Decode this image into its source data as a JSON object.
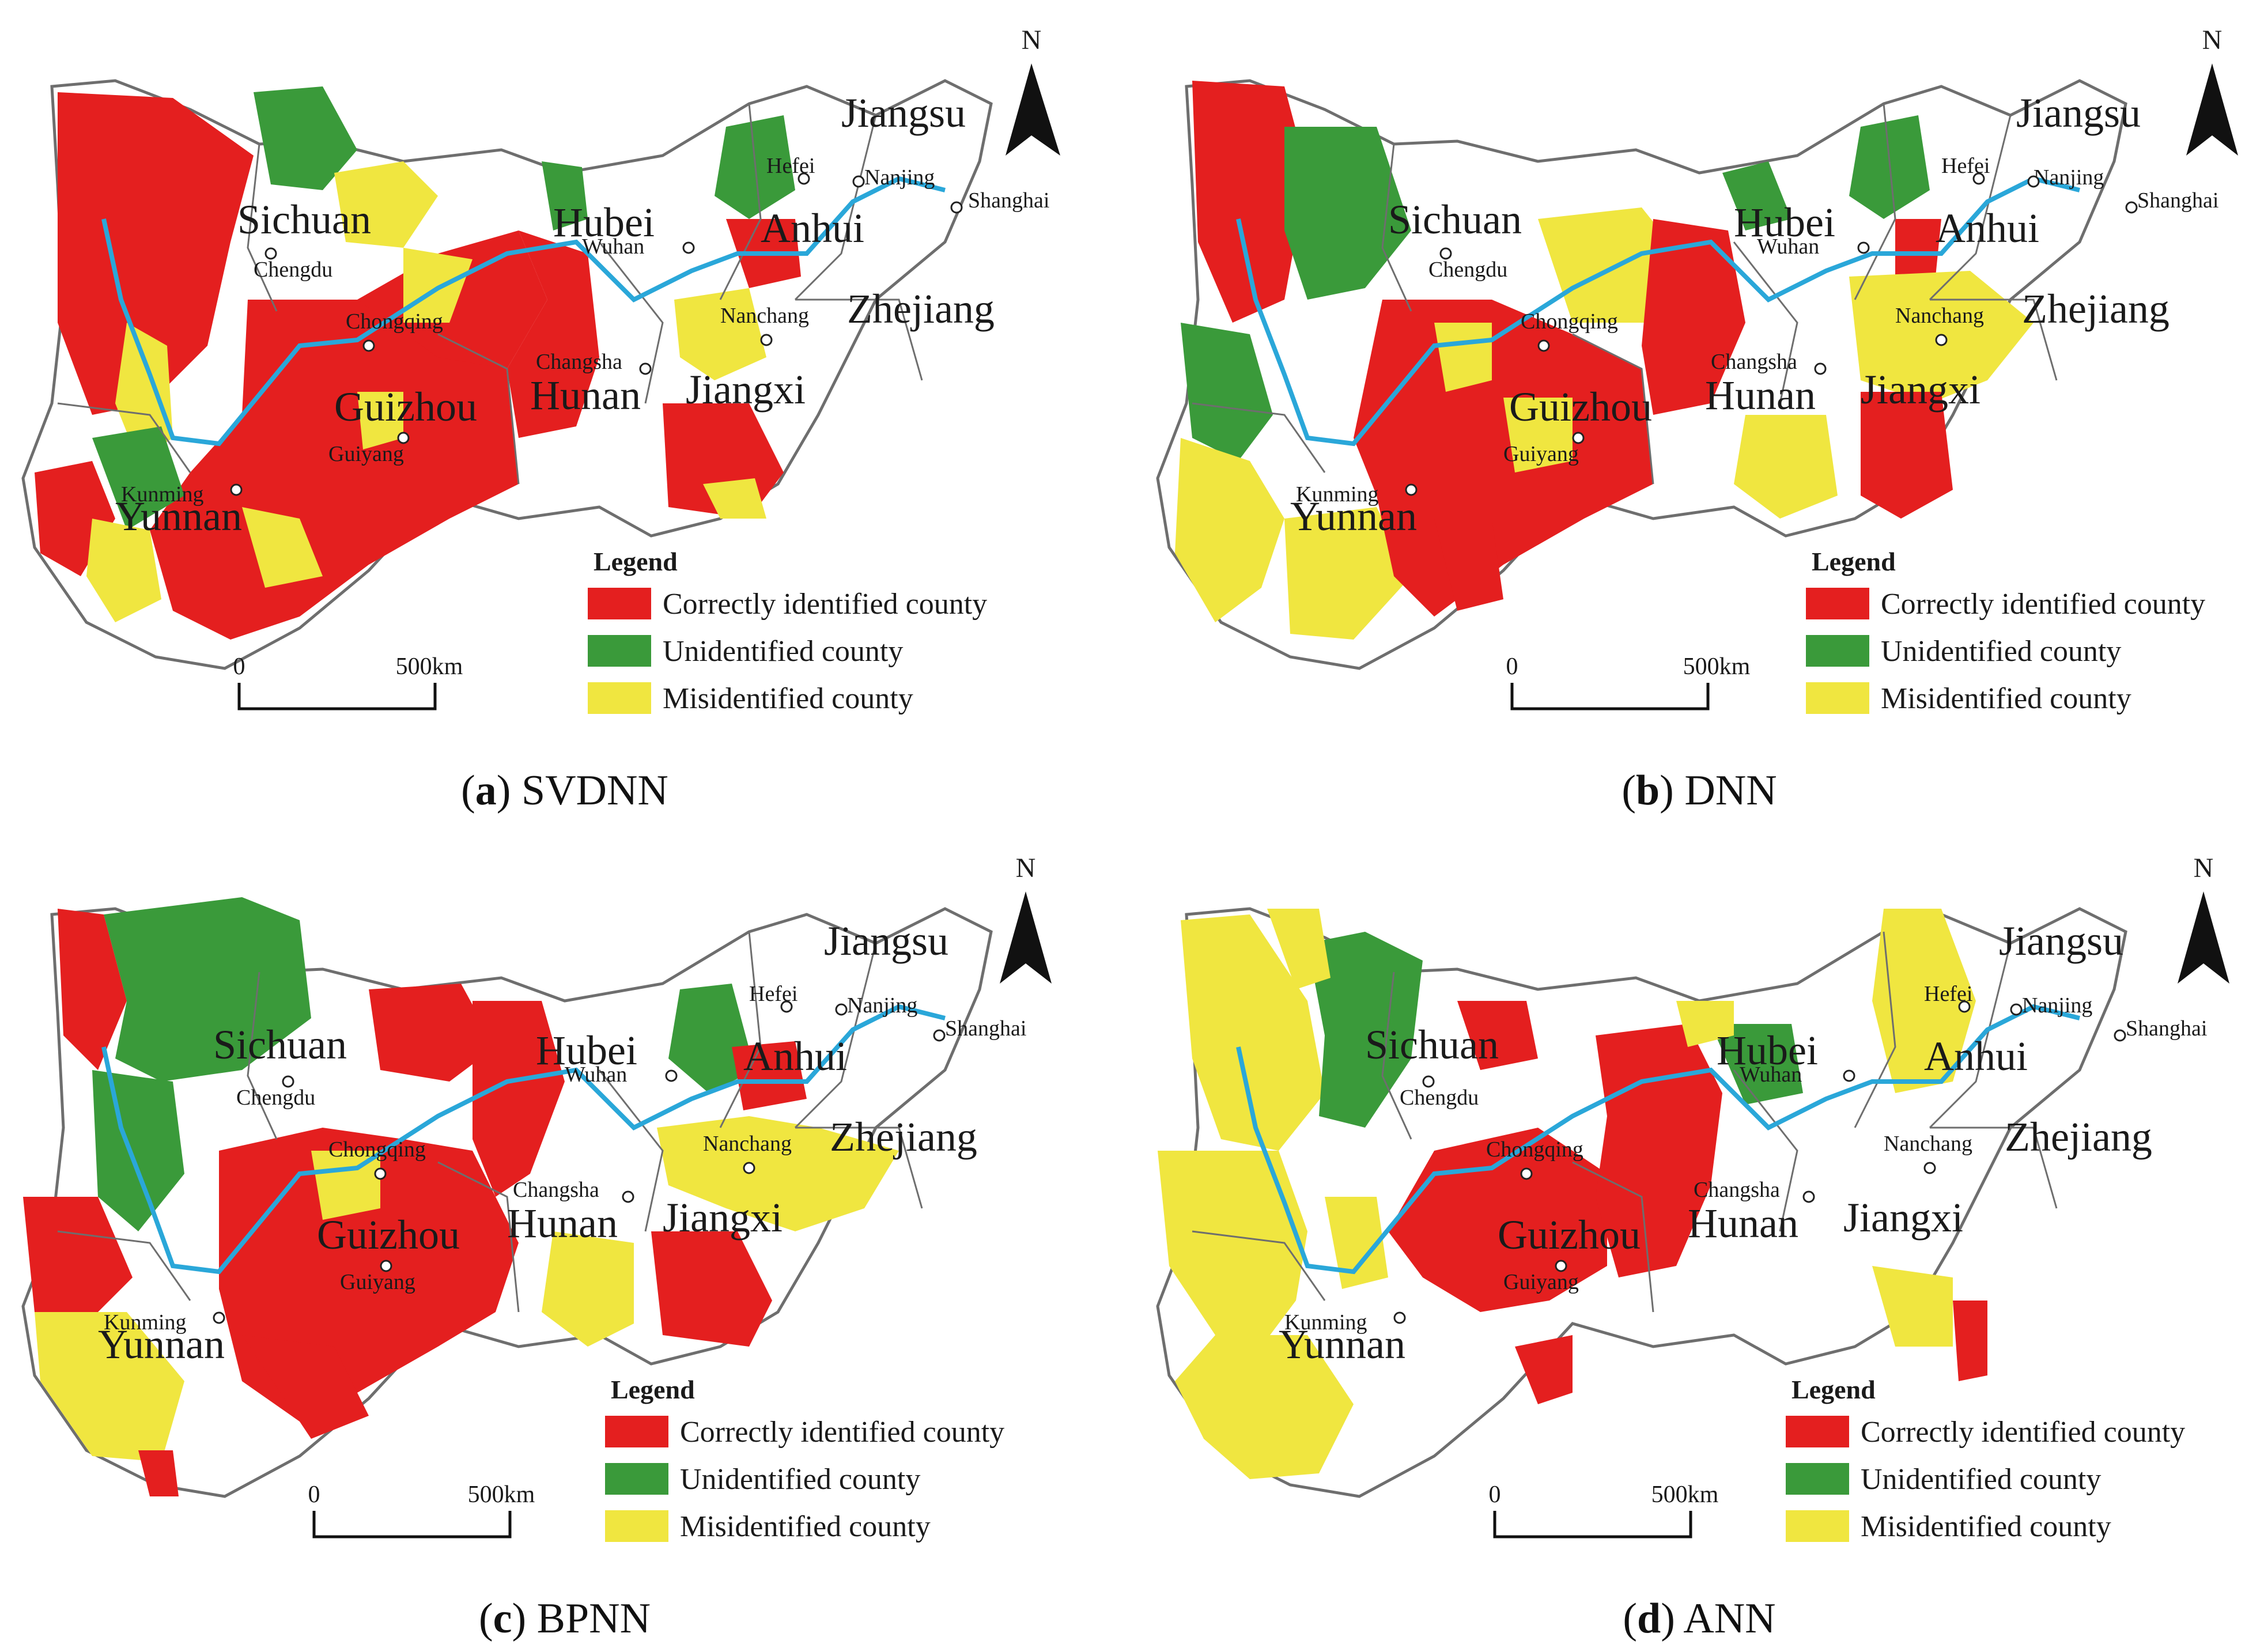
{
  "panels": [
    {
      "letter": "a",
      "model": "SVDNN"
    },
    {
      "letter": "b",
      "model": "DNN"
    },
    {
      "letter": "c",
      "model": "BPNN"
    },
    {
      "letter": "d",
      "model": "ANN"
    }
  ],
  "provinces": [
    "Sichuan",
    "Hubei",
    "Anhui",
    "Jiangsu",
    "Zhejiang",
    "Jiangxi",
    "Hunan",
    "Guizhou",
    "Yunnan"
  ],
  "cities": [
    "Chengdu",
    "Chongqing",
    "Wuhan",
    "Hefei",
    "Nanjing",
    "Shanghai",
    "Nanchang",
    "Changsha",
    "Guiyang",
    "Kunming"
  ],
  "legend": {
    "title": "Legend",
    "items": [
      {
        "label": "Correctly identified county",
        "color": "#e41f1f"
      },
      {
        "label": "Unidentified county",
        "color": "#3a9a3a"
      },
      {
        "label": "Misidentified county",
        "color": "#f0e640"
      }
    ]
  },
  "scale_bar": {
    "start": "0",
    "end": "500km"
  },
  "north_arrow": "N",
  "colors": {
    "river": "#2aa7d9",
    "outline": "#6e6e6e",
    "background": "#ffffff"
  }
}
